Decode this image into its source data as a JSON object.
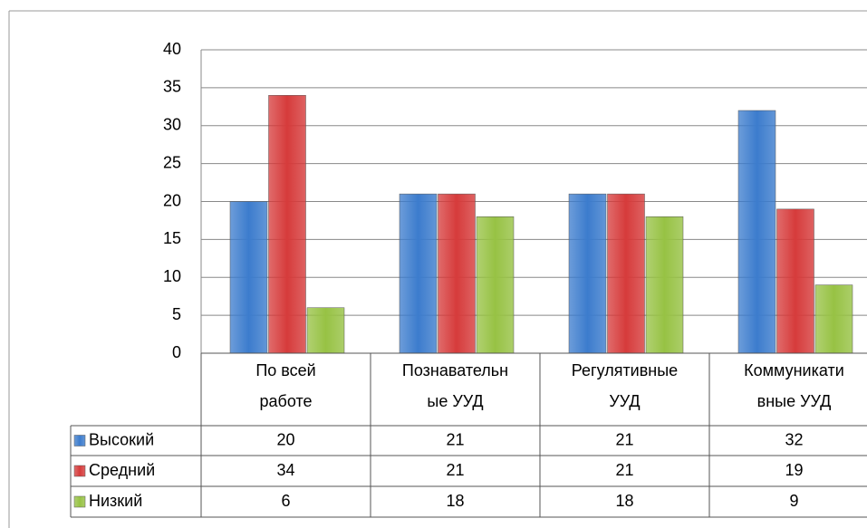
{
  "chart_data": {
    "type": "bar",
    "categories": [
      "По всей работе",
      "Познавательные УУД",
      "Регулятивные УУД",
      "Коммуникативные УУД"
    ],
    "series": [
      {
        "name": "Высокий",
        "color": "#3c7ccd",
        "values": [
          20,
          21,
          21,
          32
        ]
      },
      {
        "name": "Средний",
        "color": "#d63b3b",
        "values": [
          34,
          21,
          21,
          19
        ]
      },
      {
        "name": "Низкий",
        "color": "#97c244",
        "values": [
          6,
          18,
          18,
          9
        ]
      }
    ],
    "ylim": [
      0,
      40
    ],
    "yticks": [
      0,
      5,
      10,
      15,
      20,
      25,
      30,
      35,
      40
    ],
    "grid": true,
    "data_table": true
  }
}
